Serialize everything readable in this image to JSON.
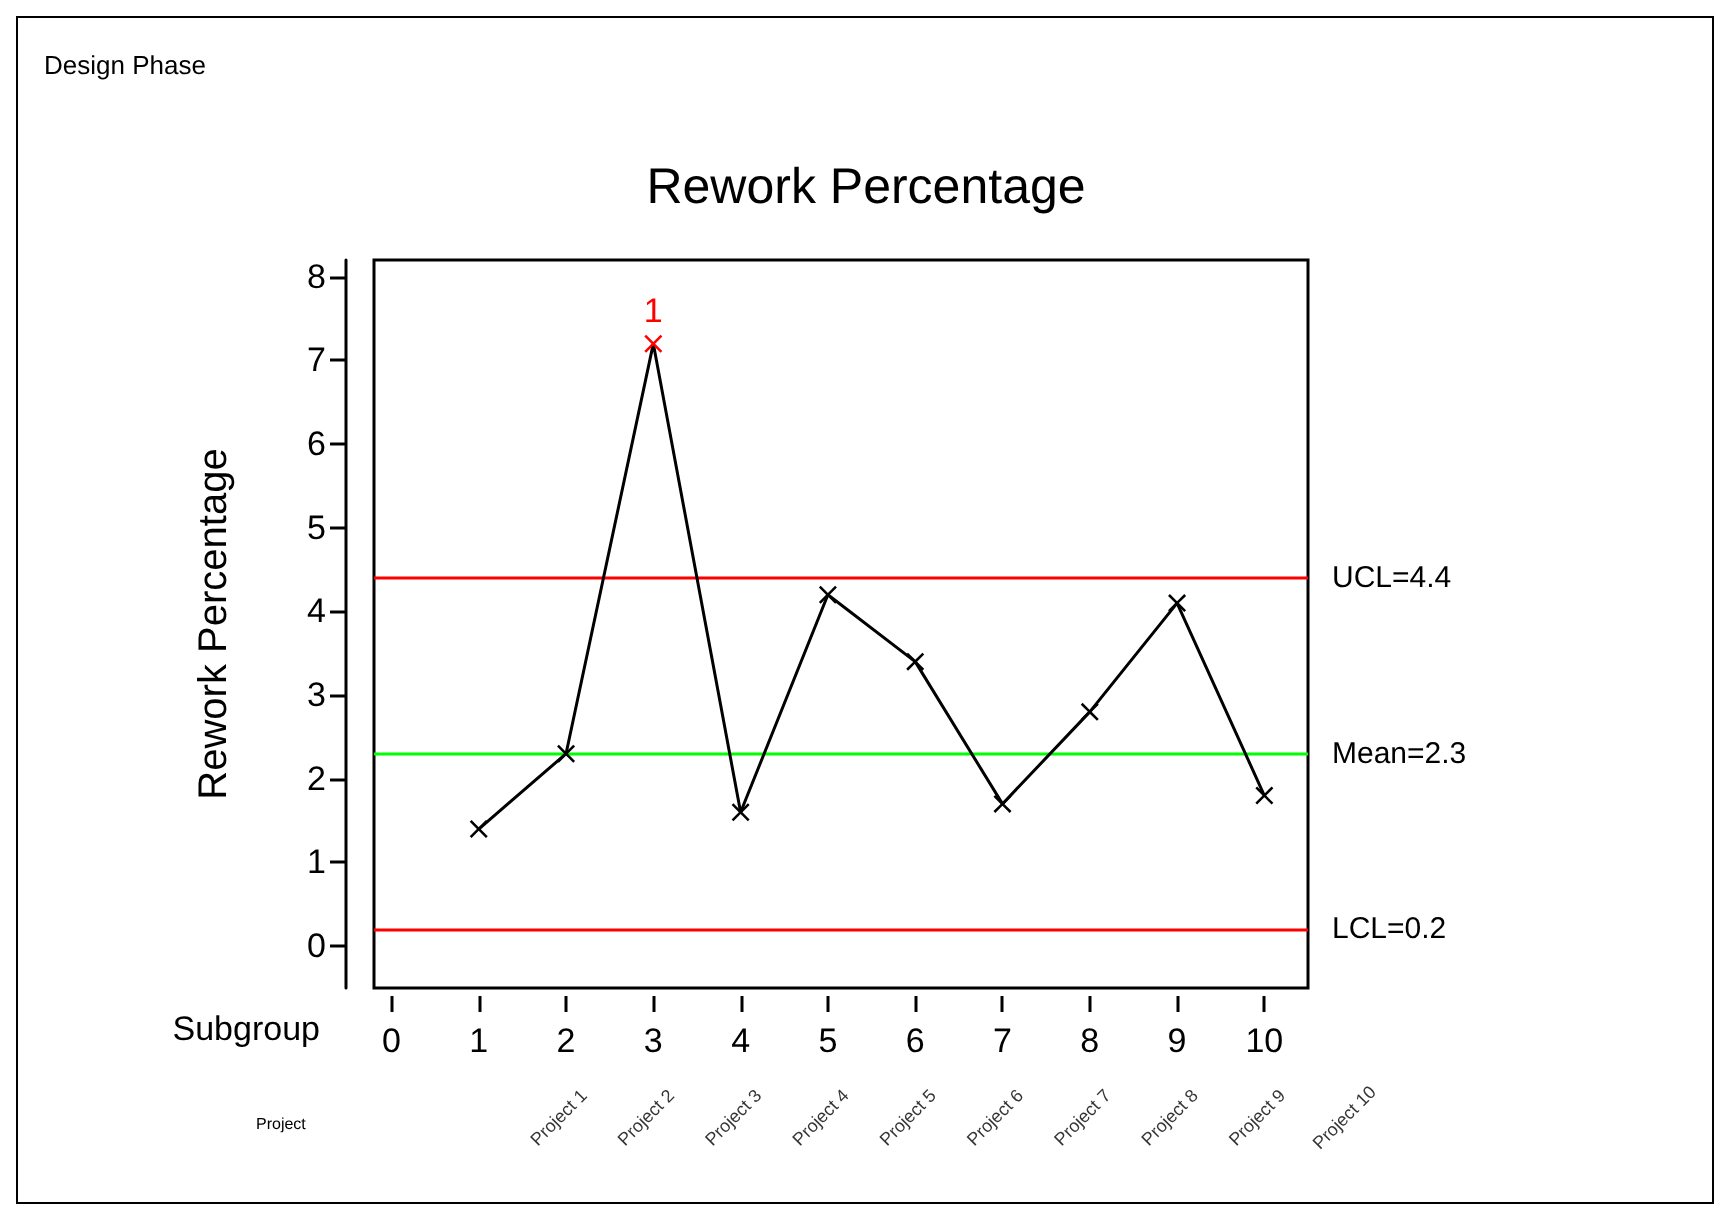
{
  "chart_data": {
    "type": "line",
    "title": "Rework Percentage",
    "ylabel": "Rework Percentage",
    "xlabel": "Subgroup",
    "annotations": [
      "Design Phase",
      "Project",
      "Project 1",
      "Project 2",
      "Project 3",
      "Project 4",
      "Project 5",
      "Project 6",
      "Project 7",
      "Project 8",
      "Project 9",
      "Project 10",
      {
        "text": "1",
        "x": 3,
        "y": 7.2
      }
    ],
    "x": [
      1,
      2,
      3,
      4,
      5,
      6,
      7,
      8,
      9,
      10
    ],
    "series": [
      {
        "color": "#000000",
        "colors": [
          "#000000",
          "#000000",
          "#ff0000",
          "#000000",
          "#000000",
          "#000000",
          "#000000",
          "#000000",
          "#000000",
          "#000000"
        ],
        "values": [
          1.4,
          2.3,
          7.2,
          1.6,
          4.2,
          3.4,
          1.7,
          2.8,
          4.1,
          1.8
        ]
      }
    ],
    "xlim": [
      -0.2,
      10.5
    ],
    "xticks": [
      0,
      1,
      2,
      3,
      4,
      5,
      6,
      7,
      8,
      9,
      10
    ],
    "ylim": [
      -0.5,
      8.2
    ],
    "yticks": [
      0,
      1,
      2,
      3,
      4,
      5,
      6,
      7,
      8
    ],
    "ref_lines": [
      {
        "axis": "y",
        "value": 4.4,
        "label": "UCL=4.4",
        "color": "#ff0000"
      },
      {
        "axis": "y",
        "value": 2.3,
        "label": "Mean=2.3",
        "color": "#00ff00"
      },
      {
        "axis": "y",
        "value": 0.2,
        "label": "LCL=0.2",
        "color": "#ff0000"
      }
    ],
    "marker": "cross",
    "line_style": "solid",
    "grid": false
  }
}
